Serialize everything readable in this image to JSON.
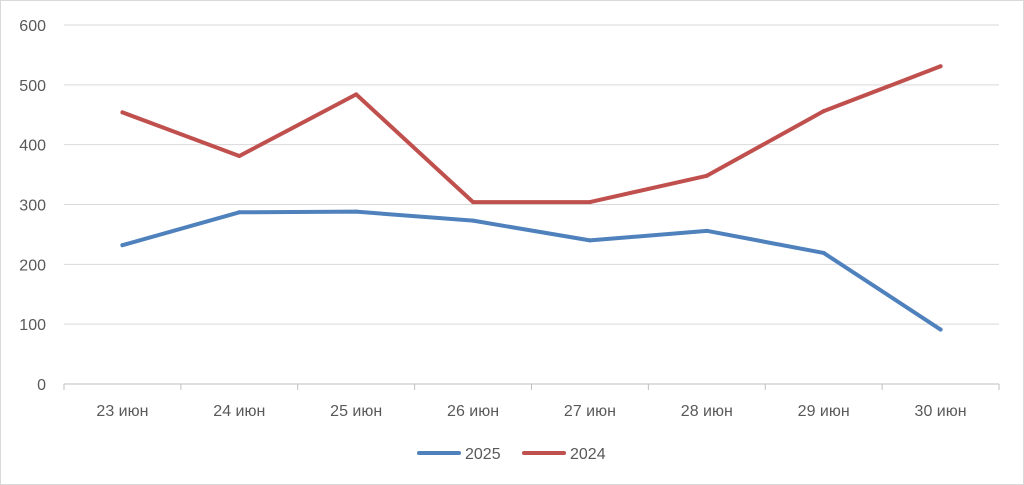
{
  "chart_data": {
    "type": "line",
    "title": "",
    "xlabel": "",
    "ylabel": "",
    "categories": [
      "23 июн",
      "24 июн",
      "25 июн",
      "26 июн",
      "27 июн",
      "28 июн",
      "29 июн",
      "30 июн"
    ],
    "ylim": [
      0,
      600
    ],
    "yticks": [
      "0",
      "100",
      "200",
      "300",
      "400",
      "500",
      "600"
    ],
    "grid": true,
    "legend_position": "bottom",
    "series": [
      {
        "name": "2025",
        "color": "#4f81bd",
        "values": [
          232,
          287,
          288,
          273,
          240,
          256,
          219,
          91
        ]
      },
      {
        "name": "2024",
        "color": "#c0504d",
        "values": [
          454,
          381,
          484,
          304,
          304,
          348,
          456,
          531
        ]
      }
    ]
  }
}
